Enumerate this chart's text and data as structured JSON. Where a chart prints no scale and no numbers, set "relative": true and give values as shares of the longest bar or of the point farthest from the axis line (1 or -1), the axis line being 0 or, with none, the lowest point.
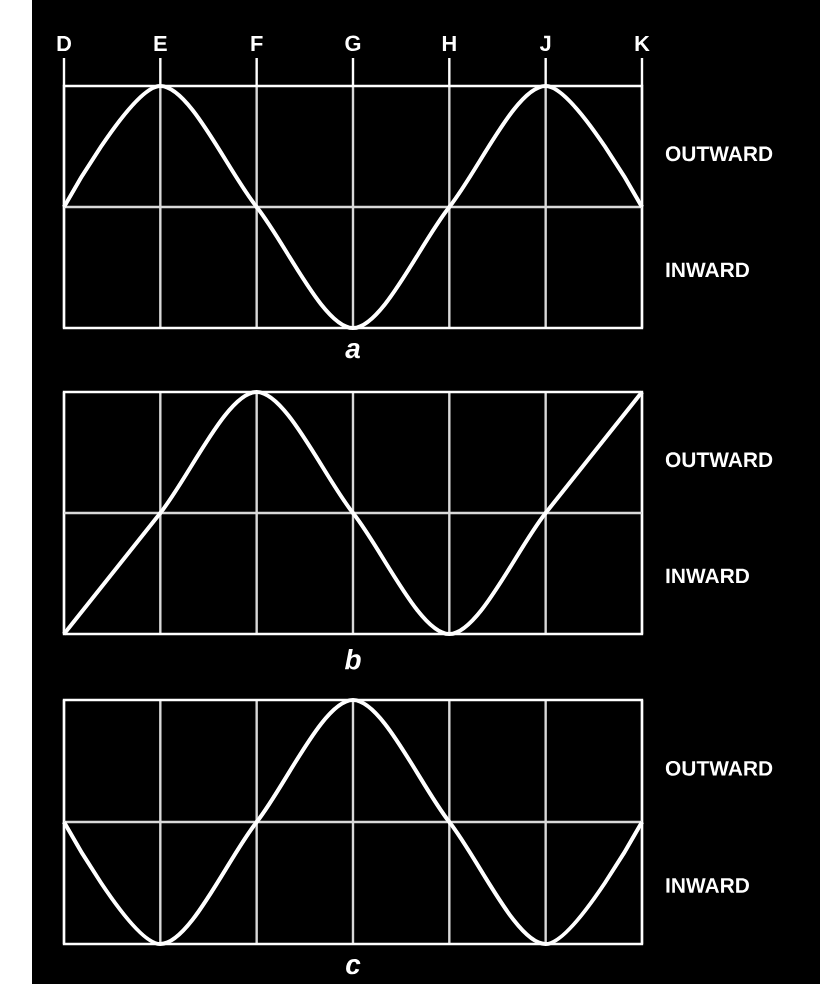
{
  "chart_data": [
    {
      "type": "line",
      "title": "a",
      "categories": [
        "D",
        "E",
        "F",
        "G",
        "H",
        "J",
        "K"
      ],
      "values": [
        0,
        1,
        0,
        -1,
        0,
        1,
        0
      ],
      "color": "#ffffff",
      "relative": true,
      "grid": "x",
      "tick_labels": "x",
      "annotations": [
        "OUTWARD",
        "INWARD"
      ]
    },
    {
      "type": "line",
      "title": "b",
      "categories": [
        null,
        null,
        null,
        null,
        null,
        null,
        null
      ],
      "values": [
        -1,
        0,
        1,
        0,
        -1,
        0,
        1
      ],
      "color": "#ffffff",
      "relative": true,
      "grid": "x",
      "tick_labels": false,
      "annotations": [
        "OUTWARD",
        "INWARD"
      ]
    },
    {
      "type": "line",
      "title": "c",
      "categories": [
        null,
        null,
        null,
        null,
        null,
        null,
        null
      ],
      "values": [
        0,
        -1,
        0,
        1,
        0,
        -1,
        0
      ],
      "color": "#ffffff",
      "relative": true,
      "grid": "x",
      "tick_labels": false,
      "annotations": [
        "OUTWARD",
        "INWARD"
      ]
    }
  ]
}
